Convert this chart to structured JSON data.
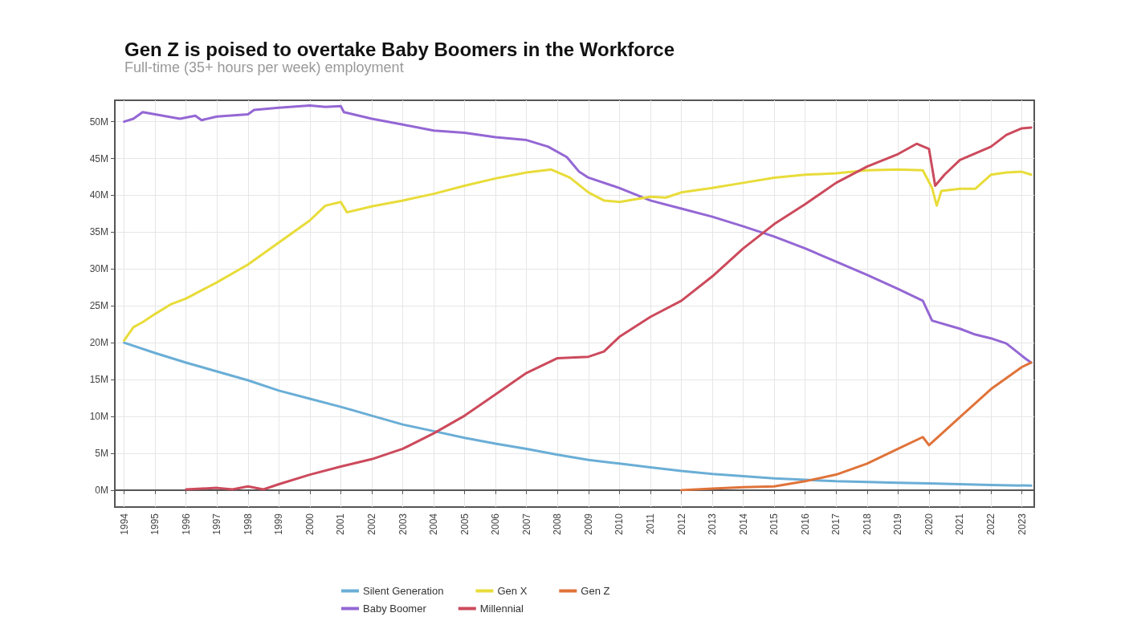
{
  "chart_data": {
    "type": "line",
    "title": "Gen Z is poised to overtake Baby Boomers in the Workforce",
    "subtitle": "Full-time (35+ hours per week) employment",
    "xlim": [
      1993.7,
      2023.4
    ],
    "xticks": [
      1994,
      1995,
      1996,
      1997,
      1998,
      1999,
      2000,
      2001,
      2002,
      2003,
      2004,
      2005,
      2006,
      2007,
      2008,
      2009,
      2010,
      2011,
      2012,
      2013,
      2014,
      2015,
      2016,
      2017,
      2018,
      2019,
      2020,
      2021,
      2022,
      2023
    ],
    "ylim": [
      -2.3,
      52.9
    ],
    "yticks": [
      {
        "value": 0,
        "label": "0M"
      },
      {
        "value": 5,
        "label": "5M"
      },
      {
        "value": 10,
        "label": "10M"
      },
      {
        "value": 15,
        "label": "15M"
      },
      {
        "value": 20,
        "label": "20M"
      },
      {
        "value": 25,
        "label": "25M"
      },
      {
        "value": 30,
        "label": "30M"
      },
      {
        "value": 35,
        "label": "35M"
      },
      {
        "value": 40,
        "label": "40M"
      },
      {
        "value": 45,
        "label": "45M"
      },
      {
        "value": 50,
        "label": "50M"
      }
    ],
    "grid": true,
    "legend": "bottom",
    "marker": "none",
    "line_style": "solid",
    "series": [
      {
        "name": "Silent Generation",
        "color": "#6aaed6",
        "x": [
          1994,
          1995,
          1996,
          1997,
          1998,
          1999,
          2000,
          2001,
          2002,
          2003,
          2004,
          2005,
          2006,
          2007,
          2008,
          2009,
          2010,
          2011,
          2012,
          2013,
          2014,
          2015,
          2016,
          2017,
          2018,
          2019,
          2020,
          2021,
          2022,
          2023.3
        ],
        "values": [
          20.0,
          18.6,
          17.3,
          16.1,
          14.9,
          13.5,
          12.4,
          11.3,
          10.1,
          8.9,
          8.0,
          7.1,
          6.3,
          5.6,
          4.8,
          4.1,
          3.6,
          3.1,
          2.6,
          2.2,
          1.9,
          1.6,
          1.4,
          1.2,
          1.1,
          1.0,
          0.9,
          0.8,
          0.7,
          0.6
        ]
      },
      {
        "name": "Baby Boomer",
        "color": "#9467d4",
        "x": [
          1994,
          1994.3,
          1994.6,
          1995,
          1995.8,
          1996.3,
          1996.5,
          1997,
          1998,
          1998.2,
          1999,
          2000,
          2000.5,
          2001,
          2001.1,
          2002,
          2003,
          2004,
          2005,
          2006,
          2007,
          2007.7,
          2008.3,
          2008.7,
          2009,
          2010,
          2011,
          2012,
          2013,
          2014,
          2015,
          2016,
          2017,
          2018,
          2019,
          2019.8,
          2020.1,
          2021,
          2021.5,
          2022,
          2022.5,
          2023.1,
          2023.3
        ],
        "values": [
          50.0,
          50.4,
          51.3,
          51.0,
          50.4,
          50.8,
          50.2,
          50.7,
          51.0,
          51.6,
          51.9,
          52.2,
          52.0,
          52.1,
          51.3,
          50.4,
          49.6,
          48.8,
          48.5,
          47.9,
          47.5,
          46.6,
          45.2,
          43.2,
          42.4,
          41.0,
          39.3,
          38.2,
          37.1,
          35.8,
          34.4,
          32.8,
          31.0,
          29.2,
          27.3,
          25.7,
          23.0,
          21.9,
          21.1,
          20.6,
          19.9,
          17.9,
          17.3
        ]
      },
      {
        "name": "Gen X",
        "color": "#e8dc3a",
        "x": [
          1994,
          1994.3,
          1994.6,
          1995,
          1995.5,
          1996,
          1997,
          1998,
          1999,
          2000,
          2000.5,
          2001,
          2001.2,
          2002,
          2003,
          2004,
          2005,
          2006,
          2007,
          2007.8,
          2008.4,
          2009,
          2009.5,
          2010,
          2011,
          2011.5,
          2012,
          2013,
          2014,
          2015,
          2016,
          2017,
          2018,
          2019,
          2019.8,
          2020.1,
          2020.25,
          2020.4,
          2021,
          2021.5,
          2022,
          2022.5,
          2023,
          2023.3
        ],
        "values": [
          20.3,
          22.1,
          22.8,
          23.9,
          25.2,
          26.0,
          28.2,
          30.6,
          33.6,
          36.6,
          38.6,
          39.1,
          37.7,
          38.5,
          39.3,
          40.2,
          41.3,
          42.3,
          43.1,
          43.5,
          42.4,
          40.4,
          39.3,
          39.1,
          39.8,
          39.7,
          40.4,
          41.0,
          41.7,
          42.4,
          42.8,
          43.0,
          43.4,
          43.5,
          43.4,
          41.0,
          38.6,
          40.6,
          40.9,
          40.9,
          42.8,
          43.1,
          43.2,
          42.8
        ]
      },
      {
        "name": "Millennial",
        "color": "#cc4a5c",
        "x": [
          1996,
          1997,
          1997.5,
          1998,
          1998.5,
          1999,
          2000,
          2001,
          2002,
          2003,
          2004,
          2005,
          2006,
          2007,
          2008,
          2009,
          2009.5,
          2010,
          2011,
          2012,
          2013,
          2014,
          2015,
          2016,
          2017,
          2018,
          2019,
          2019.6,
          2020,
          2020.2,
          2020.5,
          2021,
          2022,
          2022.5,
          2023,
          2023.3
        ],
        "values": [
          0.1,
          0.3,
          0.1,
          0.5,
          0.1,
          0.8,
          2.1,
          3.2,
          4.2,
          5.6,
          7.7,
          10.1,
          13.0,
          15.9,
          17.9,
          18.1,
          18.8,
          20.8,
          23.5,
          25.7,
          29.0,
          32.8,
          36.1,
          38.8,
          41.7,
          43.9,
          45.6,
          47.0,
          46.3,
          41.3,
          42.8,
          44.8,
          46.6,
          48.2,
          49.1,
          49.2
        ]
      },
      {
        "name": "Gen Z",
        "color": "#e0733a",
        "x": [
          2012,
          2013,
          2014,
          2015,
          2016,
          2017,
          2018,
          2019,
          2019.8,
          2020,
          2021,
          2022,
          2023,
          2023.3
        ],
        "values": [
          0.0,
          0.2,
          0.4,
          0.5,
          1.2,
          2.1,
          3.6,
          5.6,
          7.2,
          6.1,
          9.9,
          13.7,
          16.7,
          17.3
        ]
      }
    ]
  }
}
